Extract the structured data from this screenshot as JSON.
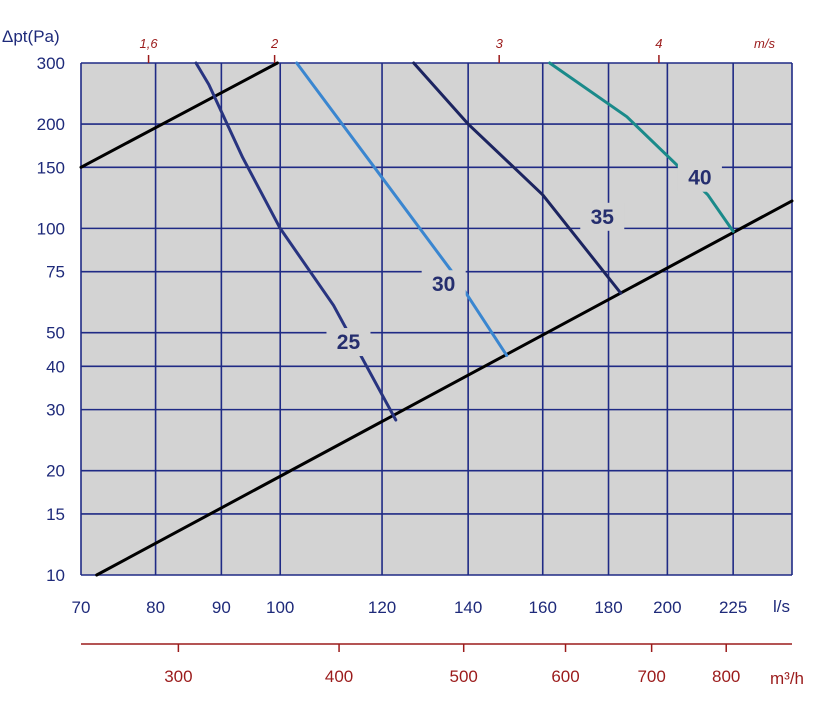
{
  "colors": {
    "plot_bg": "#d3d3d3",
    "grid": "#1f2a85",
    "axis_text": "#1e2a7a",
    "secondary_axis": "#9b1b1b",
    "system_line": "#000000",
    "curve_25": "#283480",
    "curve_30": "#3a86d0",
    "curve_35": "#1c2460",
    "curve_40": "#1a8a8a"
  },
  "chart_data": {
    "type": "line",
    "title": "",
    "ylabel": "Δpt(Pa)",
    "xlabel": "l/s",
    "xlabel_secondary": "m³/h",
    "velocity_unit": "m/s",
    "x_scale": "log",
    "y_scale": "log",
    "xlim": [
      70,
      250
    ],
    "ylim": [
      10,
      300
    ],
    "grid": true,
    "x_ticks": [
      70,
      80,
      90,
      100,
      120,
      140,
      160,
      180,
      200,
      225
    ],
    "x_tick_labels": [
      "70",
      "80",
      "90",
      "100",
      "120",
      "140",
      "160",
      "180",
      "200",
      "225"
    ],
    "y_ticks": [
      10,
      15,
      20,
      30,
      40,
      50,
      75,
      100,
      150,
      200,
      300
    ],
    "y_tick_labels": [
      "10",
      "15",
      "20",
      "30",
      "40",
      "50",
      "75",
      "100",
      "150",
      "200",
      "300"
    ],
    "m3h_ticks": [
      300,
      400,
      500,
      600,
      700,
      800
    ],
    "m3h_tick_labels": [
      "300",
      "400",
      "500",
      "600",
      "700",
      "800"
    ],
    "velocity_ticks": [
      {
        "label": "1,6",
        "x": 79
      },
      {
        "label": "2",
        "x": 99
      },
      {
        "label": "3",
        "x": 148
      },
      {
        "label": "4",
        "x": 197
      }
    ],
    "series": [
      {
        "name": "system-upper",
        "kind": "system",
        "points": [
          [
            70,
            150
          ],
          [
            99.5,
            300
          ]
        ]
      },
      {
        "name": "system-lower",
        "kind": "system",
        "points": [
          [
            72,
            10
          ],
          [
            250,
            120
          ]
        ]
      },
      {
        "name": "25",
        "kind": "curve",
        "points": [
          [
            86,
            300
          ],
          [
            88,
            260
          ],
          [
            93.5,
            160
          ],
          [
            100,
            100
          ],
          [
            110,
            60
          ],
          [
            123,
            28
          ]
        ]
      },
      {
        "name": "30",
        "kind": "curve",
        "points": [
          [
            103,
            300
          ],
          [
            120,
            140
          ],
          [
            136,
            75
          ],
          [
            150,
            43
          ]
        ]
      },
      {
        "name": "35",
        "kind": "curve",
        "points": [
          [
            127,
            300
          ],
          [
            140,
            200
          ],
          [
            160,
            125
          ],
          [
            184,
            65
          ]
        ]
      },
      {
        "name": "40",
        "kind": "curve",
        "points": [
          [
            162,
            300
          ],
          [
            186,
            210
          ],
          [
            215,
            125
          ],
          [
            225,
            98
          ]
        ]
      }
    ],
    "curve_labels": [
      {
        "text": "25",
        "x": 113,
        "y": 47
      },
      {
        "text": "30",
        "x": 134,
        "y": 69
      },
      {
        "text": "35",
        "x": 178,
        "y": 108
      },
      {
        "text": "40",
        "x": 212,
        "y": 140
      }
    ]
  }
}
